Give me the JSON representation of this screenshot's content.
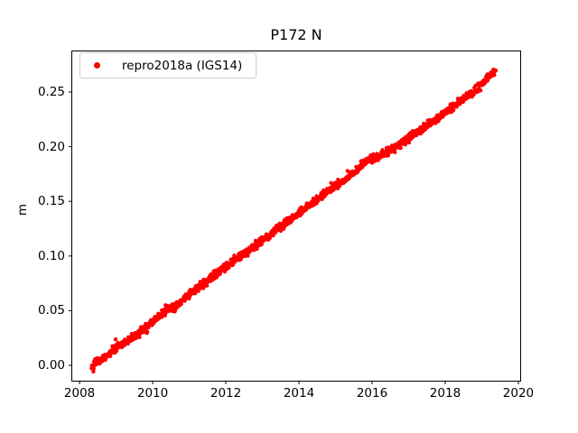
{
  "figure": {
    "background": "#ffffff",
    "accent_color": "#ff0000"
  },
  "chart_data": {
    "type": "scatter",
    "title": "P172 N",
    "xlabel": "",
    "ylabel": "m",
    "grid": false,
    "legend": {
      "position": "upper left",
      "entries": [
        {
          "label": "repro2018a (IGS14)",
          "marker": "dot-icon",
          "color": "#ff0000"
        }
      ]
    },
    "x_ticks": [
      "2008",
      "2010",
      "2012",
      "2014",
      "2016",
      "2018",
      "2020"
    ],
    "y_ticks": [
      "0.00",
      "0.05",
      "0.10",
      "0.15",
      "0.20",
      "0.25"
    ],
    "xlim": [
      2007.8,
      2020.05
    ],
    "ylim": [
      -0.014,
      0.2871
    ],
    "series": [
      {
        "name": "repro2018a (IGS14)",
        "color": "#ff0000",
        "marker": "point",
        "x_start": 2008.33,
        "x_end": 2019.38,
        "anchor_points": [
          [
            2008.33,
            -0.001
          ],
          [
            2008.45,
            0.002
          ],
          [
            2008.7,
            0.008
          ],
          [
            2009.0,
            0.016
          ],
          [
            2009.2,
            0.02
          ],
          [
            2009.5,
            0.026
          ],
          [
            2010.0,
            0.04
          ],
          [
            2010.35,
            0.05
          ],
          [
            2010.6,
            0.053
          ],
          [
            2011.0,
            0.065
          ],
          [
            2011.5,
            0.0775
          ],
          [
            2012.0,
            0.09
          ],
          [
            2012.5,
            0.102
          ],
          [
            2013.0,
            0.114
          ],
          [
            2013.5,
            0.127
          ],
          [
            2014.0,
            0.139
          ],
          [
            2014.5,
            0.1515
          ],
          [
            2015.0,
            0.1635
          ],
          [
            2015.5,
            0.176
          ],
          [
            2015.85,
            0.188
          ],
          [
            2016.05,
            0.189
          ],
          [
            2016.3,
            0.1935
          ],
          [
            2016.7,
            0.2005
          ],
          [
            2017.0,
            0.2075
          ],
          [
            2017.5,
            0.2195
          ],
          [
            2018.0,
            0.2315
          ],
          [
            2018.5,
            0.2435
          ],
          [
            2018.8,
            0.2505
          ],
          [
            2019.0,
            0.2565
          ],
          [
            2019.15,
            0.2625
          ],
          [
            2019.3,
            0.2675
          ],
          [
            2019.38,
            0.27
          ]
        ]
      }
    ],
    "render_hints": {
      "noise_sigma": 0.0018,
      "outlier_fraction": 0.02,
      "outlier_scale": 2.0,
      "marker_radius_px": 2.2,
      "n_render_points": 1400,
      "seed": 42
    }
  }
}
